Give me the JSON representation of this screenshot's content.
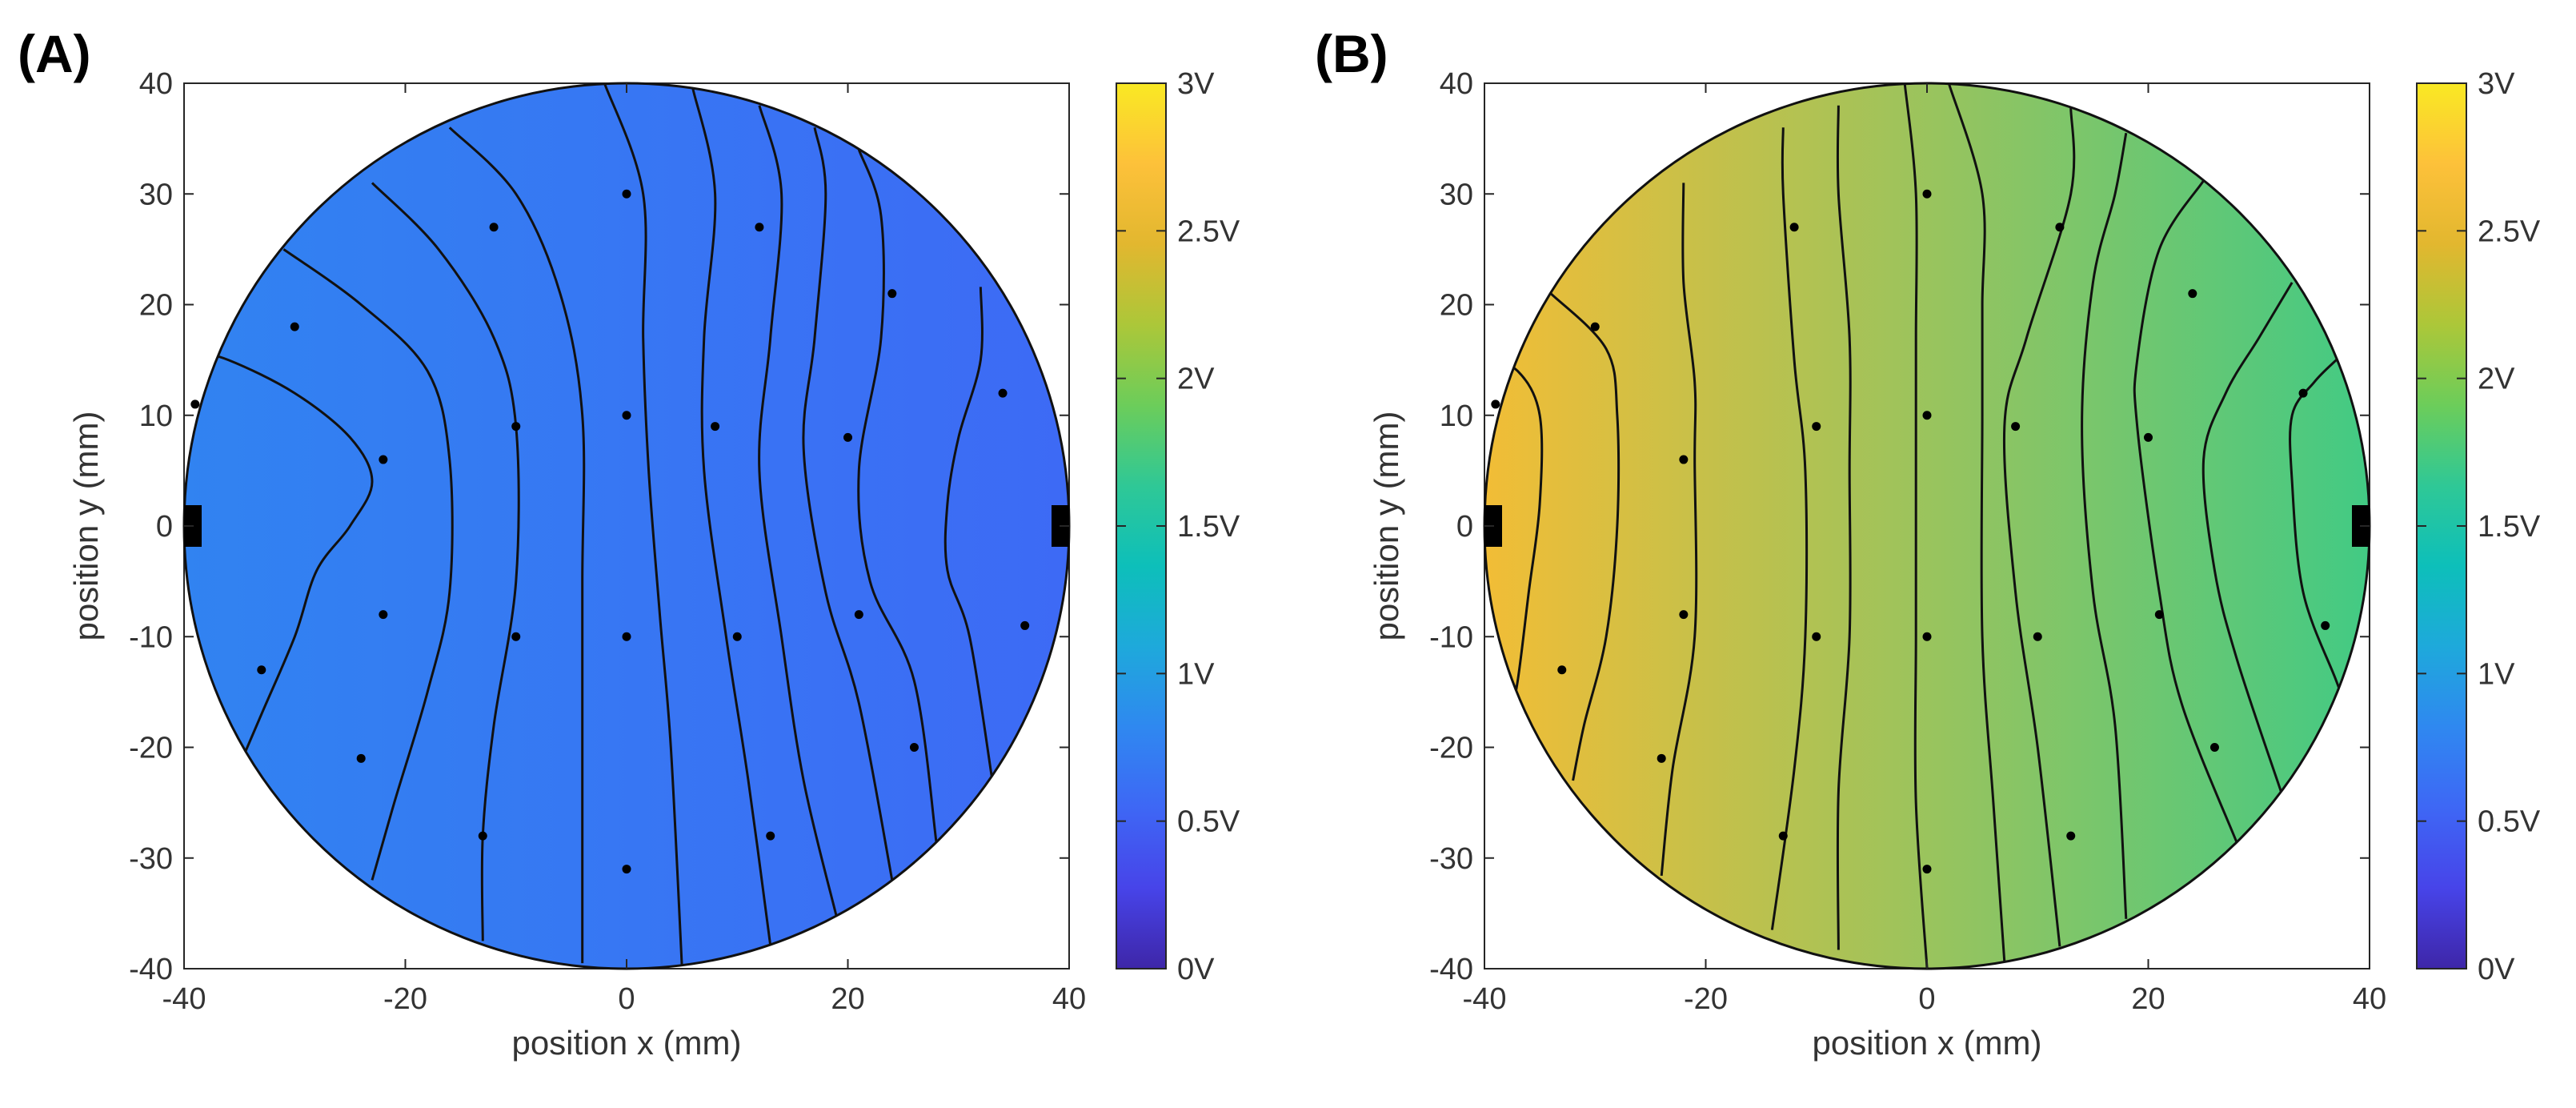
{
  "figure": {
    "colorbar_stops": [
      "#3e26a8",
      "#4744e9",
      "#3e67f5",
      "#2f88f0",
      "#1ea9db",
      "#0dbfba",
      "#2fc896",
      "#6ccd5a",
      "#acc739",
      "#e2b72f",
      "#fdc13a",
      "#f9e923"
    ]
  },
  "chart_data": [
    {
      "type": "heatmap",
      "panel_label": "(A)",
      "title": "",
      "xlabel": "position x (mm)",
      "ylabel": "position y (mm)",
      "xlim": [
        -40,
        40
      ],
      "ylim": [
        -40,
        40
      ],
      "xticks": [
        "-40",
        "-20",
        "0",
        "20",
        "40"
      ],
      "yticks": [
        "40",
        "30",
        "20",
        "10",
        "0",
        "-10",
        "-20",
        "-30",
        "-40"
      ],
      "colorbar": {
        "min": 0,
        "max": 3,
        "ticks": [
          "3V",
          "2.5V",
          "2V",
          "1.5V",
          "1V",
          "0.5V",
          "0V"
        ]
      },
      "wafer_radius_mm": 40,
      "field": {
        "v_left": 0.78,
        "v_right": 0.57
      },
      "electrodes_x_mm": [
        -40,
        40
      ],
      "measurement_points": [
        [
          0,
          30
        ],
        [
          -12,
          27
        ],
        [
          12,
          27
        ],
        [
          -30,
          18
        ],
        [
          24,
          21
        ],
        [
          -39,
          11
        ],
        [
          -22,
          6
        ],
        [
          -10,
          9
        ],
        [
          0,
          10
        ],
        [
          8,
          9
        ],
        [
          20,
          8
        ],
        [
          34,
          12
        ],
        [
          -22,
          -8
        ],
        [
          -10,
          -10
        ],
        [
          0,
          -10
        ],
        [
          10,
          -10
        ],
        [
          21,
          -8
        ],
        [
          36,
          -9
        ],
        [
          -33,
          -13
        ],
        [
          -24,
          -21
        ],
        [
          26,
          -20
        ],
        [
          -13,
          -28
        ],
        [
          13,
          -28
        ],
        [
          0,
          -31
        ]
      ],
      "contours": [
        [
          [
            -40,
            16
          ],
          [
            -36,
            15
          ],
          [
            -30,
            12
          ],
          [
            -25,
            8
          ],
          [
            -23,
            4
          ],
          [
            -25,
            0
          ],
          [
            -28,
            -4
          ],
          [
            -30,
            -10
          ],
          [
            -33,
            -17
          ],
          [
            -36,
            -24
          ]
        ],
        [
          [
            -31,
            25
          ],
          [
            -24,
            20
          ],
          [
            -18,
            14
          ],
          [
            -16,
            6
          ],
          [
            -16,
            -6
          ],
          [
            -18,
            -15
          ],
          [
            -21,
            -25
          ],
          [
            -23,
            -32
          ]
        ],
        [
          [
            -23,
            31
          ],
          [
            -17,
            25
          ],
          [
            -12,
            17
          ],
          [
            -10,
            9
          ],
          [
            -10,
            -5
          ],
          [
            -12,
            -18
          ],
          [
            -13,
            -28
          ],
          [
            -13,
            -37.5
          ]
        ],
        [
          [
            -16,
            36
          ],
          [
            -10,
            30
          ],
          [
            -6,
            21
          ],
          [
            -4,
            10
          ],
          [
            -4,
            -5
          ],
          [
            -4,
            -22
          ],
          [
            -4,
            -39.5
          ]
        ],
        [
          [
            -2,
            40
          ],
          [
            1.5,
            30
          ],
          [
            1.5,
            17
          ],
          [
            2,
            5
          ],
          [
            3,
            -8
          ],
          [
            4,
            -20
          ],
          [
            5,
            -39.7
          ]
        ],
        [
          [
            6,
            39.5
          ],
          [
            8,
            30
          ],
          [
            7,
            17
          ],
          [
            7,
            5
          ],
          [
            9,
            -10
          ],
          [
            11,
            -23
          ],
          [
            13,
            -37.9
          ]
        ],
        [
          [
            12,
            38
          ],
          [
            14,
            30
          ],
          [
            13,
            17
          ],
          [
            12,
            5
          ],
          [
            14,
            -10
          ],
          [
            16,
            -23
          ],
          [
            19,
            -35.4
          ]
        ],
        [
          [
            17,
            36
          ],
          [
            18,
            30
          ],
          [
            17,
            17
          ],
          [
            16,
            7
          ],
          [
            18,
            -6
          ],
          [
            21,
            -16
          ],
          [
            24,
            -32
          ]
        ],
        [
          [
            21,
            34
          ],
          [
            23,
            28
          ],
          [
            23,
            17
          ],
          [
            21,
            5
          ],
          [
            22,
            -5
          ],
          [
            26,
            -14
          ],
          [
            28,
            -28.6
          ]
        ],
        [
          [
            32,
            21.6
          ],
          [
            32,
            15
          ],
          [
            30,
            8
          ],
          [
            29,
            2
          ],
          [
            29,
            -4
          ],
          [
            31,
            -10
          ],
          [
            33,
            -22.6
          ]
        ]
      ]
    },
    {
      "type": "heatmap",
      "panel_label": "(B)",
      "title": "",
      "xlabel": "position x (mm)",
      "ylabel": "position y (mm)",
      "xlim": [
        -40,
        40
      ],
      "ylim": [
        -40,
        40
      ],
      "xticks": [
        "-40",
        "-20",
        "0",
        "20",
        "40"
      ],
      "yticks": [
        "40",
        "30",
        "20",
        "10",
        "0",
        "-10",
        "-20",
        "-30",
        "-40"
      ],
      "colorbar": {
        "min": 0,
        "max": 3,
        "ticks": [
          "3V",
          "2.5V",
          "2V",
          "1.5V",
          "1V",
          "0.5V",
          "0V"
        ]
      },
      "wafer_radius_mm": 40,
      "field": {
        "v_left": 2.62,
        "v_right": 1.72
      },
      "electrodes_x_mm": [
        -40,
        40
      ],
      "measurement_points": [
        [
          0,
          30
        ],
        [
          -12,
          27
        ],
        [
          12,
          27
        ],
        [
          -30,
          18
        ],
        [
          24,
          21
        ],
        [
          -39,
          11
        ],
        [
          -22,
          6
        ],
        [
          -10,
          9
        ],
        [
          0,
          10
        ],
        [
          8,
          9
        ],
        [
          20,
          8
        ],
        [
          34,
          12
        ],
        [
          -22,
          -8
        ],
        [
          -10,
          -10
        ],
        [
          0,
          -10
        ],
        [
          10,
          -10
        ],
        [
          21,
          -8
        ],
        [
          36,
          -9
        ],
        [
          -33,
          -13
        ],
        [
          -24,
          -21
        ],
        [
          26,
          -20
        ],
        [
          -13,
          -28
        ],
        [
          13,
          -28
        ],
        [
          0,
          -31
        ]
      ],
      "contours": [
        [
          [
            -40,
            15
          ],
          [
            -37,
            14
          ],
          [
            -35,
            10
          ],
          [
            -35,
            2
          ],
          [
            -36,
            -6
          ],
          [
            -37,
            -14
          ],
          [
            -38,
            -19
          ]
        ],
        [
          [
            -34,
            21
          ],
          [
            -29,
            16
          ],
          [
            -28,
            10
          ],
          [
            -28,
            0
          ],
          [
            -29,
            -10
          ],
          [
            -31,
            -18
          ],
          [
            -32,
            -23
          ]
        ],
        [
          [
            -22,
            31
          ],
          [
            -22,
            22
          ],
          [
            -21,
            13
          ],
          [
            -21,
            6
          ],
          [
            -21,
            -10
          ],
          [
            -23,
            -22
          ],
          [
            -24,
            -31.6
          ]
        ],
        [
          [
            -13,
            36
          ],
          [
            -13,
            30
          ],
          [
            -12,
            15
          ],
          [
            -11,
            5
          ],
          [
            -11,
            -10
          ],
          [
            -12,
            -22
          ],
          [
            -14,
            -36.5
          ]
        ],
        [
          [
            -8,
            38
          ],
          [
            -8,
            30
          ],
          [
            -7,
            17
          ],
          [
            -7,
            5
          ],
          [
            -7,
            -10
          ],
          [
            -8,
            -24
          ],
          [
            -8,
            -38.3
          ]
        ],
        [
          [
            -2,
            39.9
          ],
          [
            -1,
            30
          ],
          [
            -1,
            17
          ],
          [
            -1,
            5
          ],
          [
            -1,
            -10
          ],
          [
            -1,
            -25
          ],
          [
            0,
            -39.9
          ]
        ],
        [
          [
            2,
            39.9
          ],
          [
            5,
            30
          ],
          [
            5,
            20
          ],
          [
            5,
            10
          ],
          [
            5,
            -10
          ],
          [
            6,
            -25
          ],
          [
            7,
            -39.4
          ]
        ],
        [
          [
            13,
            37.8
          ],
          [
            13,
            30
          ],
          [
            9,
            17
          ],
          [
            7,
            9
          ],
          [
            8,
            -6
          ],
          [
            10,
            -20
          ],
          [
            12,
            -38
          ]
        ],
        [
          [
            18,
            35.5
          ],
          [
            17,
            30
          ],
          [
            15,
            22
          ],
          [
            14,
            9
          ],
          [
            15,
            -6
          ],
          [
            17,
            -18
          ],
          [
            18,
            -35.5
          ]
        ],
        [
          [
            25,
            31.2
          ],
          [
            21,
            25
          ],
          [
            19,
            15
          ],
          [
            19,
            9
          ],
          [
            21,
            -6
          ],
          [
            23,
            -16
          ],
          [
            28,
            -28.6
          ]
        ],
        [
          [
            33,
            22
          ],
          [
            30,
            17
          ],
          [
            27,
            12
          ],
          [
            25,
            6
          ],
          [
            26,
            -4
          ],
          [
            28,
            -12
          ],
          [
            32,
            -24
          ]
        ],
        [
          [
            37,
            15
          ],
          [
            35,
            13
          ],
          [
            33,
            10
          ],
          [
            33,
            4
          ],
          [
            34,
            -6
          ],
          [
            37,
            -14
          ],
          [
            38.5,
            -18
          ]
        ]
      ]
    }
  ]
}
